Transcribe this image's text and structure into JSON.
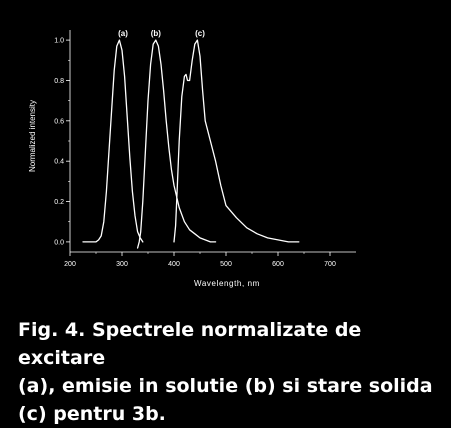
{
  "chart_data": {
    "type": "line",
    "title": "",
    "xlabel": "Wavelength, nm",
    "ylabel": "Normalized intensity",
    "xlim": [
      200,
      750
    ],
    "ylim": [
      -0.05,
      1.05
    ],
    "x_ticks": [
      200,
      300,
      400,
      500,
      600,
      700
    ],
    "y_ticks": [
      0.0,
      0.2,
      0.4,
      0.6,
      0.8,
      1.0
    ],
    "x_tick_labels": [
      "200",
      "300",
      "400",
      "500",
      "600",
      "700"
    ],
    "y_tick_labels": [
      "0.0",
      "0.2",
      "0.4",
      "0.6",
      "0.8",
      "1.0"
    ],
    "grid": false,
    "legend": "none",
    "line_color": "#ffffff",
    "series": [
      {
        "name": "(a)",
        "x": [
          225,
          240,
          250,
          255,
          260,
          265,
          270,
          275,
          280,
          285,
          290,
          295,
          300,
          305,
          310,
          315,
          320,
          325,
          330,
          335,
          340
        ],
        "y": [
          0.0,
          0.0,
          0.0,
          0.01,
          0.03,
          0.1,
          0.25,
          0.45,
          0.65,
          0.85,
          0.97,
          1.0,
          0.95,
          0.82,
          0.62,
          0.42,
          0.25,
          0.13,
          0.05,
          0.02,
          0.0
        ]
      },
      {
        "name": "(b)",
        "x": [
          330,
          333,
          336,
          340,
          345,
          350,
          355,
          360,
          365,
          370,
          375,
          380,
          385,
          390,
          395,
          400,
          410,
          420,
          430,
          440,
          450,
          460,
          470,
          480
        ],
        "y": [
          -0.03,
          0.0,
          0.05,
          0.2,
          0.45,
          0.7,
          0.88,
          0.98,
          1.0,
          0.97,
          0.88,
          0.75,
          0.6,
          0.47,
          0.36,
          0.28,
          0.17,
          0.1,
          0.06,
          0.04,
          0.02,
          0.01,
          0.0,
          0.0
        ]
      },
      {
        "name": "(c)",
        "x": [
          400,
          403,
          406,
          410,
          415,
          420,
          423,
          426,
          430,
          435,
          440,
          445,
          450,
          455,
          460,
          470,
          480,
          490,
          500,
          520,
          540,
          560,
          580,
          600,
          620,
          640
        ],
        "y": [
          0.0,
          0.08,
          0.25,
          0.5,
          0.72,
          0.82,
          0.83,
          0.8,
          0.8,
          0.9,
          0.98,
          1.0,
          0.92,
          0.75,
          0.6,
          0.5,
          0.4,
          0.28,
          0.18,
          0.12,
          0.07,
          0.04,
          0.02,
          0.01,
          0.0,
          0.0
        ]
      }
    ],
    "series_labels": [
      {
        "text": "(a)",
        "x": 302
      },
      {
        "text": "(b)",
        "x": 365
      },
      {
        "text": "(c)",
        "x": 450
      }
    ]
  },
  "caption": {
    "line1": "Fig. 4. Spectrele normalizate de excitare",
    "line2": "(a), emisie in solutie (b) si stare solida",
    "line3": "(c) pentru 3b."
  }
}
